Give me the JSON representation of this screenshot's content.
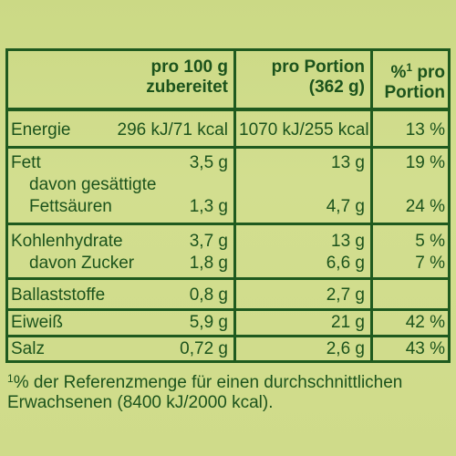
{
  "header": {
    "col100": [
      "pro 100 g",
      "zubereitet"
    ],
    "colPortion": [
      "pro Portion",
      "(362 g)"
    ],
    "colPct": [
      "%",
      "1",
      " pro",
      "Portion"
    ]
  },
  "rows": {
    "energie": {
      "label": "Energie",
      "v100": "296 kJ/71 kcal",
      "vPortion": "1070 kJ/255 kcal",
      "pct": "13 %"
    },
    "fett": {
      "label": "Fett",
      "v100": "3,5 g",
      "vPortion": "13 g",
      "pct": "19 %"
    },
    "fett_sub1": {
      "label": "davon gesättigte"
    },
    "fett_sub2": {
      "label": "Fettsäuren",
      "v100": "1,3 g",
      "vPortion": "4,7 g",
      "pct": "24 %"
    },
    "kh": {
      "label": "Kohlenhydrate",
      "v100": "3,7 g",
      "vPortion": "13 g",
      "pct": "5 %"
    },
    "zucker": {
      "label": "davon Zucker",
      "v100": "1,8 g",
      "vPortion": "6,6 g",
      "pct": "7 %"
    },
    "ballast": {
      "label": "Ballaststoffe",
      "v100": "0,8 g",
      "vPortion": "2,7 g"
    },
    "eiweiss": {
      "label": "Eiweiß",
      "v100": "5,9 g",
      "vPortion": "21 g",
      "pct": "42 %"
    },
    "salz": {
      "label": "Salz",
      "v100": "0,72 g",
      "vPortion": "2,6 g",
      "pct": "43 %"
    }
  },
  "footnote": {
    "mark": "1",
    "line1": "% der Referenzmenge für einen durchschnittlichen",
    "line2": "Erwachsenen (8400 kJ/2000 kcal)."
  },
  "colors": {
    "background": "#cfdb8a",
    "lines": "#1f5a1f",
    "text": "#1c531c"
  }
}
